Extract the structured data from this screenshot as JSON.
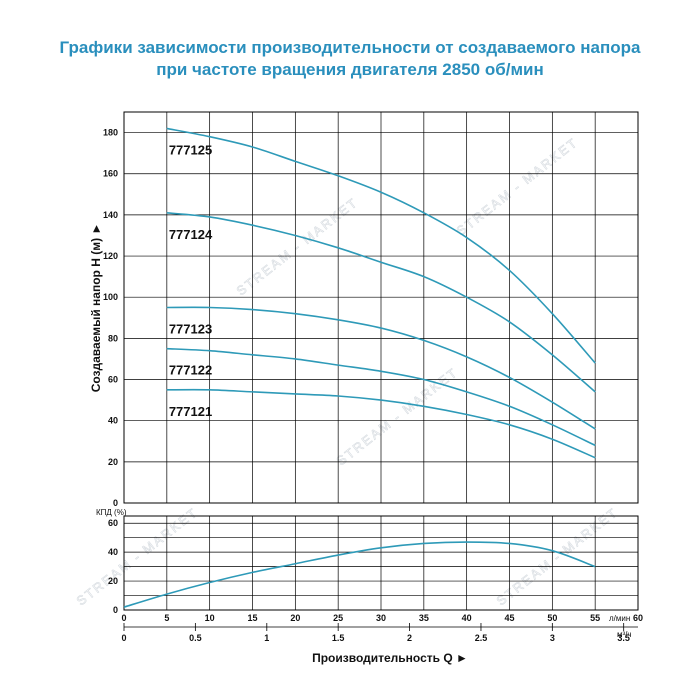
{
  "title_line1": "Графики зависимости производительности от создаваемого напора",
  "title_line2": "при частоте вращения двигателя 2850 об/мин",
  "watermark": "STREAM - MARKET",
  "colors": {
    "title": "#2a8fbd",
    "curve": "#2e9ab8",
    "grid": "#000000"
  },
  "chart_data": [
    {
      "type": "line",
      "ylabel": "Создаваемый напор H (м) ►",
      "xlabel": "Производительность Q ►",
      "x_unit": "л/мин",
      "x2_unit": "м³/ч",
      "xlim": [
        0,
        60
      ],
      "ylim": [
        0,
        190
      ],
      "x_ticks": [
        0,
        5,
        10,
        15,
        20,
        25,
        30,
        35,
        40,
        45,
        50,
        55,
        60
      ],
      "y_ticks": [
        0,
        20,
        40,
        60,
        80,
        100,
        120,
        140,
        160,
        180
      ],
      "x2_ticks": [
        "0",
        "0.5",
        "1",
        "1.5",
        "2",
        "2.5",
        "3",
        "3.5"
      ],
      "x2_tick_values": [
        0,
        8.33,
        16.67,
        25,
        33.33,
        41.67,
        50,
        58.33
      ],
      "grid": true,
      "series": [
        {
          "name": "777125",
          "x": [
            5,
            10,
            15,
            20,
            25,
            30,
            35,
            40,
            45,
            50,
            55
          ],
          "y": [
            182,
            178,
            173,
            166,
            159,
            151,
            141,
            129,
            113,
            92,
            68
          ]
        },
        {
          "name": "777124",
          "x": [
            5,
            10,
            15,
            20,
            25,
            30,
            35,
            40,
            45,
            50,
            55
          ],
          "y": [
            141,
            139,
            135,
            130,
            124,
            117,
            110,
            100,
            88,
            72,
            54
          ]
        },
        {
          "name": "777123",
          "x": [
            5,
            10,
            15,
            20,
            25,
            30,
            35,
            40,
            45,
            50,
            55
          ],
          "y": [
            95,
            95,
            94,
            92,
            89,
            85,
            79,
            71,
            61,
            49,
            36
          ]
        },
        {
          "name": "777122",
          "x": [
            5,
            10,
            15,
            20,
            25,
            30,
            35,
            40,
            45,
            50,
            55
          ],
          "y": [
            75,
            74,
            72,
            70,
            67,
            64,
            60,
            54,
            47,
            38,
            28
          ]
        },
        {
          "name": "777121",
          "x": [
            5,
            10,
            15,
            20,
            25,
            30,
            35,
            40,
            45,
            50,
            55
          ],
          "y": [
            55,
            55,
            54,
            53,
            52,
            50,
            47,
            43,
            38,
            31,
            22
          ]
        }
      ]
    },
    {
      "type": "line",
      "ylabel": "КПД (%)",
      "xlim": [
        0,
        60
      ],
      "ylim": [
        0,
        65
      ],
      "y_ticks": [
        0,
        20,
        40,
        60
      ],
      "grid": true,
      "series": [
        {
          "name": "КПД",
          "x": [
            0,
            5,
            10,
            15,
            20,
            25,
            30,
            35,
            40,
            45,
            50,
            55
          ],
          "y": [
            2,
            11,
            19,
            26,
            32,
            38,
            43,
            46,
            47,
            46,
            41,
            30
          ]
        }
      ]
    }
  ]
}
